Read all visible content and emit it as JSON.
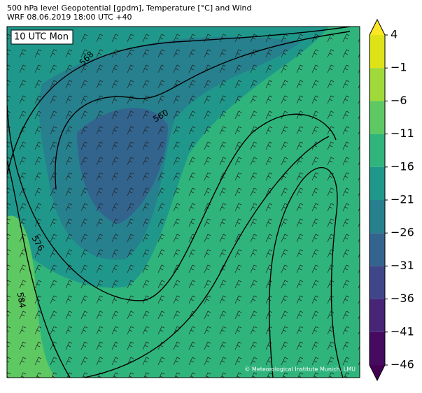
{
  "header": {
    "title_line1": "500 hPa level Geopotential [gpdm], Temperature [°C] and Wind",
    "title_line2": "WRF 08.06.2019 18:00 UTC +40"
  },
  "map": {
    "time_label": "10 UTC Mon",
    "contour_labels": [
      568,
      560,
      576,
      584
    ],
    "credit": "© Meteorological Institute Munich, LMU"
  },
  "colorbar": {
    "lim": [
      -46,
      4
    ],
    "ticks": [
      4,
      {
        "value": -1,
        "label": "−1"
      },
      {
        "value": -6,
        "label": "−6"
      },
      {
        "value": -11,
        "label": "−11"
      },
      {
        "value": -16,
        "label": "−16"
      },
      {
        "value": -21,
        "label": "−21"
      },
      {
        "value": -26,
        "label": "−26"
      },
      {
        "value": -31,
        "label": "−31"
      },
      {
        "value": -36,
        "label": "−36"
      },
      {
        "value": -41,
        "label": "−41"
      },
      {
        "value": -46,
        "label": "−46"
      }
    ],
    "colors": [
      "#dde318",
      "#9fda3a",
      "#5ec962",
      "#2fb47c",
      "#1f988b",
      "#27808e",
      "#32648e",
      "#3f4788",
      "#482576",
      "#460b5e"
    ],
    "extend_colors": [
      "#fde725",
      "#440154"
    ]
  }
}
